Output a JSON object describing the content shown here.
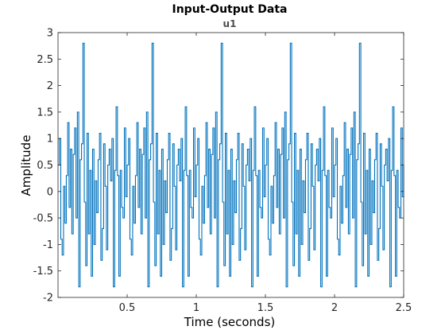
{
  "chart_data": {
    "type": "line",
    "title": "Input-Output Data",
    "subtitle": "u1",
    "xlabel": "Time (seconds)",
    "ylabel": "Amplitude",
    "xlim": [
      0.0,
      2.5
    ],
    "ylim": [
      -2,
      3
    ],
    "x_ticks": [
      0.5,
      1,
      1.5,
      2,
      2.5
    ],
    "x_tick_labels": [
      "0.5",
      "1",
      "1.5",
      "2",
      "2.5"
    ],
    "y_ticks": [
      -2,
      -1.5,
      -1,
      -0.5,
      0,
      0.5,
      1,
      1.5,
      2,
      2.5,
      3
    ],
    "y_tick_labels": [
      "-2",
      "-1.5",
      "-1",
      "-0.5",
      "0",
      "0.5",
      "1",
      "1.5",
      "2",
      "2.5",
      "3"
    ],
    "grid": false,
    "series": [
      {
        "style": "stairs",
        "color": "#0072bd",
        "x_start": 0.0,
        "x_step": 0.01,
        "period": 50,
        "values": [
          0.5,
          1.0,
          -0.9,
          -1.2,
          0.1,
          -0.6,
          0.3,
          1.3,
          -0.3,
          0.8,
          -0.8,
          0.7,
          1.2,
          -0.5,
          1.5,
          -1.8,
          0.6,
          0.9,
          2.8,
          -0.2,
          -1.4,
          1.1,
          -0.8,
          0.4,
          -1.6,
          0.8,
          -1.0,
          0.2,
          -0.4,
          0.6,
          1.1,
          -1.3,
          -0.7,
          0.9,
          0.1,
          -1.1,
          0.5,
          0.8,
          0.2,
          1.0,
          -1.8,
          0.4,
          1.6,
          0.3,
          -1.6,
          0.4,
          -0.3,
          -0.5,
          1.2,
          -0.1,
          0.5,
          1.0,
          -0.9,
          -1.2,
          0.1,
          -0.6,
          0.3,
          1.3,
          -0.3,
          0.8,
          -0.8,
          0.7,
          1.2,
          -0.5,
          1.5,
          -1.8,
          0.6,
          0.9,
          2.8,
          -0.2,
          -1.4,
          1.1,
          -0.8,
          0.4,
          -1.6,
          0.8,
          -1.0,
          0.2,
          -0.4,
          0.6,
          1.1,
          -1.3,
          -0.7,
          0.9,
          0.1,
          -1.1,
          0.5,
          0.8,
          0.2,
          1.0,
          -1.8,
          0.4,
          1.6,
          0.3,
          -1.6,
          0.4,
          -0.3,
          -0.5,
          1.2,
          -0.1,
          0.5,
          1.0,
          -0.9,
          -1.2,
          0.1,
          -0.6,
          0.3,
          1.3,
          -0.3,
          0.8,
          -0.8,
          0.7,
          1.2,
          -0.5,
          1.5,
          -1.8,
          0.6,
          0.9,
          2.8,
          -0.2,
          -1.4,
          1.1,
          -0.8,
          0.4,
          -1.6,
          0.8,
          -1.0,
          0.2,
          -0.4,
          0.6,
          1.1,
          -1.3,
          -0.7,
          0.9,
          0.1,
          -1.1,
          0.5,
          0.8,
          0.2,
          1.0,
          -1.8,
          0.4,
          1.6,
          0.3,
          -1.6,
          0.4,
          -0.3,
          -0.5,
          1.2,
          -0.1,
          0.5,
          1.0,
          -0.9,
          -1.2,
          0.1,
          -0.6,
          0.3,
          1.3,
          -0.3,
          0.8,
          -0.8,
          0.7,
          1.2,
          -0.5,
          1.5,
          -1.8,
          0.6,
          0.9,
          2.8,
          -0.2,
          -1.4,
          1.1,
          -0.8,
          0.4,
          -1.6,
          0.8,
          -1.0,
          0.2,
          -0.4,
          0.6,
          1.1,
          -1.3,
          -0.7,
          0.9,
          0.1,
          -1.1,
          0.5,
          0.8,
          0.2,
          1.0,
          -1.8,
          0.4,
          1.6,
          0.3,
          -1.6,
          0.4,
          -0.3,
          -0.5,
          1.2,
          -0.1,
          0.5,
          1.0,
          -0.9,
          -1.2,
          0.1,
          -0.6,
          0.3,
          1.3,
          -0.3,
          0.8,
          -0.8,
          0.7,
          1.2,
          -0.5,
          1.5,
          -1.8,
          0.6,
          0.9,
          2.8,
          -0.2,
          -1.4,
          1.1,
          -0.8,
          0.4,
          -1.6,
          0.8,
          -1.0,
          0.2,
          -0.4,
          0.6,
          1.1,
          -1.3,
          -0.7,
          0.9,
          0.1,
          -1.1,
          0.5,
          0.8,
          0.2,
          1.0,
          -1.8,
          0.4,
          1.6,
          0.3,
          -1.6,
          0.4,
          -0.3,
          -0.5,
          1.2,
          -0.1,
          0.5
        ]
      }
    ]
  }
}
